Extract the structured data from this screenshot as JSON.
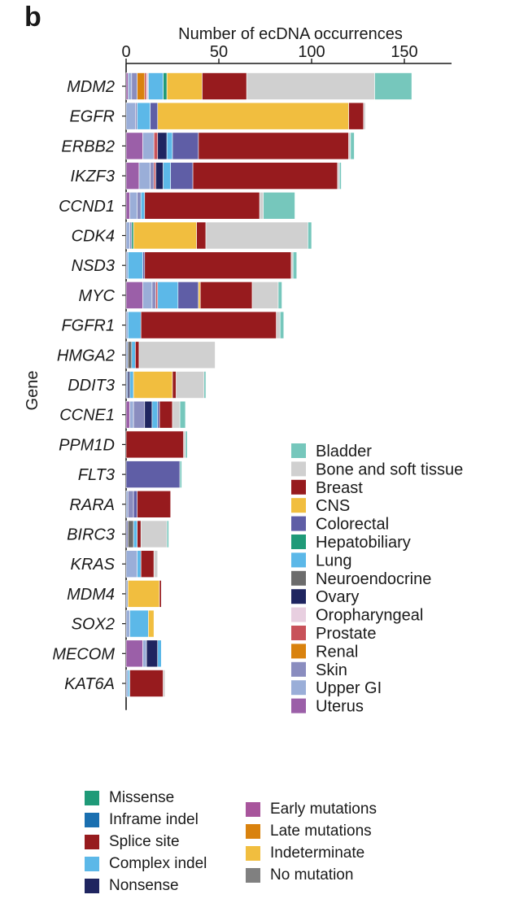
{
  "panel_label": "b",
  "chart_data": {
    "type": "bar",
    "orientation": "horizontal",
    "stacked": true,
    "xlabel": "Number of ecDNA occurrences",
    "ylabel": "Gene",
    "xlim": [
      0,
      175
    ],
    "xticks": [
      0,
      50,
      100,
      150
    ],
    "categories": [
      "MDM2",
      "EGFR",
      "ERBB2",
      "IKZF3",
      "CCND1",
      "CDK4",
      "NSD3",
      "MYC",
      "FGFR1",
      "HMGA2",
      "DDIT3",
      "CCNE1",
      "PPM1D",
      "FLT3",
      "RARA",
      "BIRC3",
      "KRAS",
      "MDM4",
      "SOX2",
      "MECOM",
      "KAT6A"
    ],
    "legend_position": "right",
    "series": [
      {
        "name": "Uterus",
        "color": "#9b5fa8",
        "values": [
          1,
          0,
          9,
          7,
          2,
          0,
          0,
          9,
          0,
          0,
          0,
          2,
          0,
          0,
          0,
          0,
          0,
          0,
          0,
          9,
          0
        ]
      },
      {
        "name": "Upper GI",
        "color": "#9aaed8",
        "values": [
          2,
          5,
          6,
          6,
          4,
          2,
          1,
          5,
          1,
          1,
          1,
          2,
          0,
          0,
          1,
          0,
          6,
          1,
          2,
          2,
          1
        ]
      },
      {
        "name": "Skin",
        "color": "#8a8dbf",
        "values": [
          3,
          1,
          0,
          2,
          2,
          1,
          0,
          2,
          0,
          0,
          0,
          6,
          0,
          0,
          3,
          1,
          0,
          0,
          0,
          0,
          0
        ]
      },
      {
        "name": "Renal",
        "color": "#d9820e",
        "values": [
          4,
          0,
          0,
          0,
          0,
          0,
          0,
          0,
          0,
          0,
          0,
          0,
          0,
          0,
          0,
          0,
          0,
          0,
          0,
          0,
          0
        ]
      },
      {
        "name": "Prostate",
        "color": "#c8525a",
        "values": [
          1,
          0,
          2,
          1,
          0,
          0,
          0,
          1,
          0,
          0,
          0,
          0,
          0,
          0,
          0,
          0,
          0,
          0,
          0,
          0,
          0
        ]
      },
      {
        "name": "Oropharyngeal",
        "color": "#e8cfe0",
        "values": [
          1,
          0,
          0,
          0,
          0,
          0,
          0,
          0,
          0,
          0,
          0,
          0,
          0,
          0,
          0,
          0,
          0,
          0,
          0,
          0,
          0
        ]
      },
      {
        "name": "Ovary",
        "color": "#1f2560",
        "values": [
          0,
          0,
          5,
          4,
          0,
          0,
          0,
          0,
          0,
          0,
          1,
          4,
          0,
          0,
          0,
          0,
          0,
          0,
          0,
          6,
          0
        ]
      },
      {
        "name": "Neuroendocrine",
        "color": "#6c6c6c",
        "values": [
          0,
          0,
          0,
          0,
          0,
          0,
          0,
          0,
          0,
          2,
          0,
          0,
          0,
          0,
          0,
          3,
          0,
          0,
          0,
          0,
          0
        ]
      },
      {
        "name": "Lung",
        "color": "#5cb8e8",
        "values": [
          8,
          7,
          3,
          4,
          2,
          0,
          8,
          11,
          7,
          2,
          2,
          3,
          0,
          0,
          0,
          2,
          2,
          0,
          10,
          2,
          1
        ]
      },
      {
        "name": "Hepatobiliary",
        "color": "#1f9a78",
        "values": [
          2,
          0,
          0,
          0,
          0,
          1,
          0,
          0,
          0,
          0,
          0,
          0,
          0,
          0,
          0,
          0,
          0,
          0,
          0,
          0,
          0
        ]
      },
      {
        "name": "Colorectal",
        "color": "#5f5ea6",
        "values": [
          0,
          4,
          14,
          12,
          0,
          0,
          1,
          11,
          0,
          0,
          0,
          1,
          0,
          29,
          2,
          0,
          0,
          0,
          0,
          0,
          0
        ]
      },
      {
        "name": "CNS",
        "color": "#f1be3f",
        "values": [
          19,
          103,
          0,
          0,
          0,
          34,
          0,
          1,
          0,
          0,
          21,
          0,
          0,
          0,
          0,
          0,
          0,
          17,
          3,
          0,
          0
        ]
      },
      {
        "name": "Breast",
        "color": "#971b1e",
        "values": [
          24,
          8,
          81,
          78,
          62,
          5,
          79,
          28,
          73,
          2,
          2,
          7,
          31,
          0,
          18,
          2,
          7,
          1,
          0,
          0,
          18
        ]
      },
      {
        "name": "Bone and soft tissue",
        "color": "#d0d0d0",
        "values": [
          69,
          1,
          1,
          1,
          2,
          55,
          1,
          14,
          2,
          41,
          15,
          4,
          1,
          0,
          0,
          14,
          2,
          0,
          0,
          0,
          1
        ]
      },
      {
        "name": "Bladder",
        "color": "#76c7bc",
        "values": [
          20,
          0,
          2,
          1,
          17,
          2,
          2,
          2,
          2,
          0,
          1,
          3,
          1,
          1,
          0,
          1,
          0,
          0,
          0,
          0,
          0
        ]
      }
    ]
  },
  "mutation_legend": {
    "col1": [
      {
        "name": "Missense",
        "color": "#1f9a78"
      },
      {
        "name": "Inframe indel",
        "color": "#1a6fb0"
      },
      {
        "name": "Splice site",
        "color": "#971b1e"
      },
      {
        "name": "Complex indel",
        "color": "#5cb8e8"
      },
      {
        "name": "Nonsense",
        "color": "#1f2560"
      }
    ],
    "col2": [
      {
        "name": "Early mutations",
        "color": "#a8559c"
      },
      {
        "name": "Late mutations",
        "color": "#d9820e"
      },
      {
        "name": "Indeterminate",
        "color": "#f1be3f"
      },
      {
        "name": "No mutation",
        "color": "#808080"
      }
    ]
  }
}
